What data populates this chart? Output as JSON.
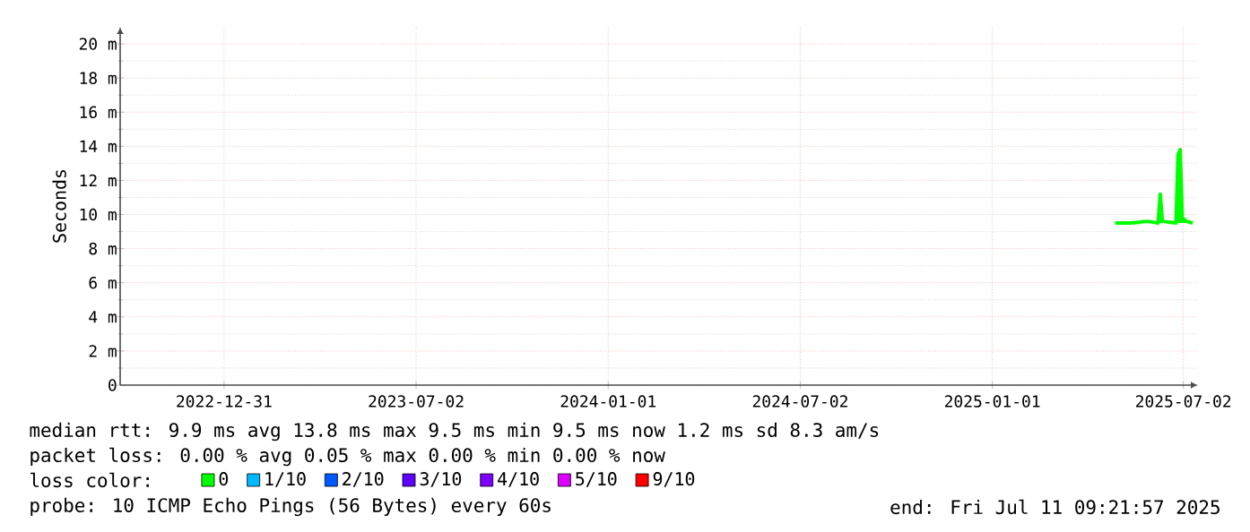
{
  "chart_data": {
    "type": "line",
    "ylabel": "Seconds",
    "x": [
      "2025-04-28",
      "2025-05-12",
      "2025-05-29",
      "2025-06-08",
      "2025-06-10",
      "2025-06-12",
      "2025-06-25",
      "2025-06-27",
      "2025-06-29",
      "2025-07-01",
      "2025-07-05",
      "2025-07-11"
    ],
    "series": [
      {
        "name": "0",
        "color": "#00ff00",
        "values": [
          9.5,
          9.5,
          9.6,
          9.5,
          11.2,
          9.6,
          9.5,
          13.5,
          13.8,
          9.8,
          9.6,
          9.5
        ]
      },
      {
        "name": "1/10",
        "color": "#00b8ff",
        "values": [
          null,
          null,
          null,
          null,
          null,
          null,
          null,
          null,
          null,
          null,
          null,
          null
        ]
      },
      {
        "name": "2/10",
        "color": "#0059ff",
        "values": [
          null,
          null,
          null,
          null,
          null,
          null,
          null,
          null,
          null,
          null,
          null,
          null
        ]
      },
      {
        "name": "3/10",
        "color": "#5e00ff",
        "values": [
          null,
          null,
          null,
          null,
          null,
          null,
          null,
          null,
          null,
          null,
          null,
          null
        ]
      },
      {
        "name": "4/10",
        "color": "#7e00ff",
        "values": [
          null,
          null,
          null,
          null,
          null,
          null,
          null,
          null,
          null,
          null,
          null,
          null
        ]
      },
      {
        "name": "5/10",
        "color": "#dd00ff",
        "values": [
          null,
          null,
          null,
          null,
          null,
          null,
          null,
          null,
          null,
          null,
          null,
          null
        ]
      },
      {
        "name": "9/10",
        "color": "#ff0000",
        "values": [
          null,
          null,
          null,
          null,
          null,
          null,
          null,
          null,
          null,
          null,
          null,
          null
        ]
      }
    ],
    "legend_title": "loss color:",
    "legend": "bottom",
    "xlim": [
      "2022-09-23",
      "2025-07-16"
    ],
    "xticks": [
      "2022-12-31",
      "2023-07-02",
      "2024-01-01",
      "2024-07-02",
      "2025-01-01",
      "2025-07-02"
    ],
    "ylim": [
      0,
      21
    ],
    "yticks": [
      0,
      {
        "value": 2,
        "label": "2 m"
      },
      {
        "value": 4,
        "label": "4 m"
      },
      {
        "value": 6,
        "label": "6 m"
      },
      {
        "value": 8,
        "label": "8 m"
      },
      {
        "value": 10,
        "label": "10 m"
      },
      {
        "value": 12,
        "label": "12 m"
      },
      {
        "value": 14,
        "label": "14 m"
      },
      {
        "value": 16,
        "label": "16 m"
      },
      {
        "value": 18,
        "label": "18 m"
      },
      {
        "value": 20,
        "label": "20 m"
      }
    ],
    "grid": true,
    "line_style": "solid",
    "annotations": [
      "median rtt:  9.9 ms avg  13.8 ms max  9.5 ms min  9.5 ms now  1.2 ms sd  8.3   am/s",
      "packet loss: 0.00 % avg  0.05 % max  0.00 % min  0.00 % now",
      "probe:       10 ICMP Echo Pings (56 Bytes) every 60s",
      "end: Fri Jul 11 09:21:57 2025"
    ]
  }
}
